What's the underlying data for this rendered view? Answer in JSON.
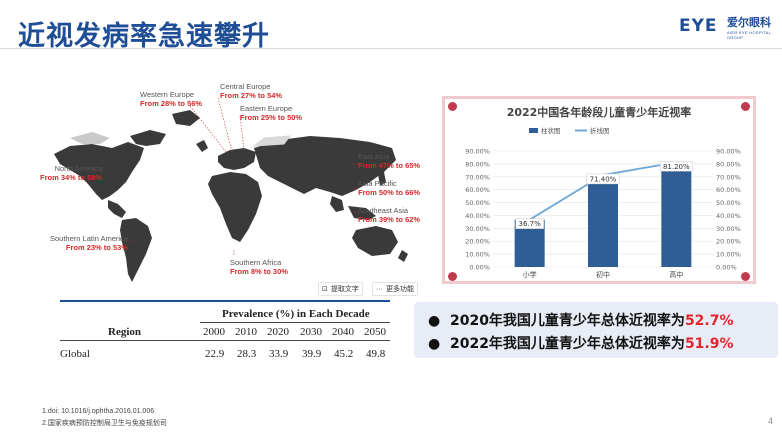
{
  "title": "近视发病率急速攀升",
  "logo": {
    "mark": "EYE",
    "cn": "爱尔眼科",
    "sub": "AIER EYE HOSPITAL GROUP"
  },
  "map_regions": [
    {
      "name": "Western Europe",
      "change": "From 28% to 56%"
    },
    {
      "name": "Central Europe",
      "change": "From 27% to 54%"
    },
    {
      "name": "Eastern Europe",
      "change": "From 25% to 50%"
    },
    {
      "name": "North America",
      "change": "From 34% to 58%"
    },
    {
      "name": "East Asia",
      "change": "From 47% to 65%"
    },
    {
      "name": "Asia Pacific",
      "change": "From 50% to 66%"
    },
    {
      "name": "Southeast Asia",
      "change": "From 39% to 62%"
    },
    {
      "name": "Southern Latin America",
      "change": "From 23% to 53%"
    },
    {
      "name": "Southern Africa",
      "change": "From 8% to 30%"
    }
  ],
  "toolbar": {
    "extract": "提取文字",
    "more": "更多功能"
  },
  "table": {
    "header": "Prevalence (%) in Each Decade",
    "region_label": "Region",
    "years": [
      "2000",
      "2010",
      "2020",
      "2030",
      "2040",
      "2050"
    ],
    "rows": [
      {
        "region": "Global",
        "values": [
          "22.9",
          "28.3",
          "33.9",
          "39.9",
          "45.2",
          "49.8"
        ]
      }
    ]
  },
  "footnotes": [
    "1.doi: 10.1016/j.ophtha.2016.01.006",
    "2.国家疾病预防控制局卫生与免疫规划司"
  ],
  "page_number": "4",
  "summary": [
    {
      "text": "2020年我国儿童青少年总体近视率为",
      "pct": "52.7%"
    },
    {
      "text": "2022年我国儿童青少年总体近视率为",
      "pct": "51.9%"
    }
  ],
  "colors": {
    "title": "#1f4e96",
    "bar": "#2e5e95",
    "line": "#6fa8d6",
    "accent_red": "#e0262e",
    "frame": "#f0c9ce"
  },
  "chart_data": {
    "type": "bar",
    "title": "2022中国各年龄段儿童青少年近视率",
    "categories": [
      "小学",
      "初中",
      "高中"
    ],
    "series": [
      {
        "name": "柱状图",
        "kind": "bar",
        "values": [
          36.7,
          71.4,
          81.2
        ]
      },
      {
        "name": "折线图",
        "kind": "line",
        "values": [
          36.7,
          71.4,
          81.2
        ]
      }
    ],
    "data_labels": [
      "36.7%",
      "71.40%",
      "81.20%"
    ],
    "y_ticks": [
      "0.00%",
      "10.00%",
      "20.00%",
      "30.00%",
      "40.00%",
      "50.00%",
      "60.00%",
      "70.00%",
      "80.00%",
      "90.00%"
    ],
    "ylim": [
      0,
      90
    ],
    "legend": "top-left",
    "grid": true
  }
}
